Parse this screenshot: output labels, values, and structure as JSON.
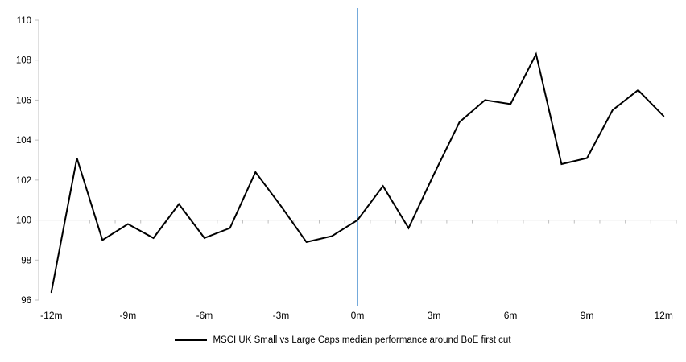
{
  "chart": {
    "legend": {
      "label": "MSCI UK Small vs Large Caps median performance around BoE first cut",
      "swatch_color": "#000000"
    },
    "colors": {
      "series_line": "#000000",
      "event_vline": "#5B9BD5",
      "axis_gray": "#BFBFBF",
      "baseline_100": "#BFBFBF",
      "text": "#000000"
    }
  },
  "chart_data": {
    "type": "line",
    "title": "",
    "legend_position": "bottom",
    "grid": "off",
    "ylim": [
      96,
      110
    ],
    "y_ticks": [
      96,
      98,
      100,
      102,
      104,
      106,
      108,
      110
    ],
    "x_tick_labels": [
      "-12m",
      "-9m",
      "-6m",
      "-3m",
      "0m",
      "3m",
      "6m",
      "9m",
      "12m"
    ],
    "x": [
      -12,
      -11,
      -10,
      -9,
      -8,
      -7,
      -6,
      -5,
      -4,
      -3,
      -2,
      -1,
      0,
      1,
      2,
      3,
      4,
      5,
      6,
      7,
      8,
      9,
      10,
      11,
      12
    ],
    "series": [
      {
        "name": "MSCI UK Small vs Large Caps median performance around BoE first cut",
        "values": [
          96.4,
          103.1,
          99.0,
          99.8,
          99.1,
          100.8,
          99.1,
          99.6,
          102.4,
          100.7,
          98.9,
          99.2,
          100.0,
          101.7,
          99.6,
          102.3,
          104.9,
          106.0,
          105.8,
          108.3,
          102.8,
          103.1,
          105.5,
          106.5,
          105.2
        ]
      }
    ],
    "annotations": [
      {
        "type": "vline",
        "x": 0,
        "color": "#5B9BD5"
      },
      {
        "type": "hline",
        "y": 100,
        "color": "#BFBFBF"
      }
    ]
  }
}
